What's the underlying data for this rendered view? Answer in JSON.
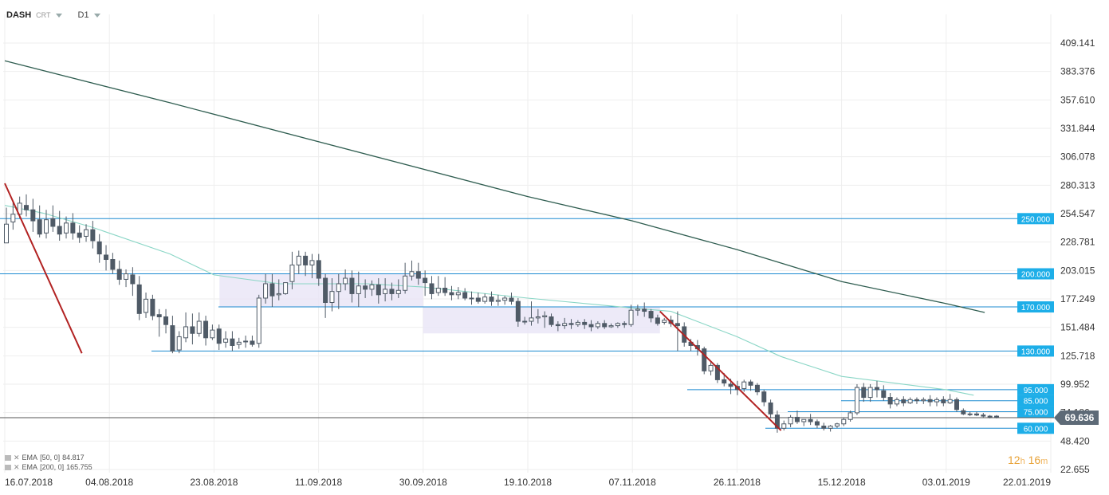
{
  "header": {
    "symbol": "DASH",
    "chart_type": "CRT",
    "timeframe": "D1"
  },
  "legend": [
    {
      "name": "EMA",
      "params": "[50, 0]",
      "value": "84.817"
    },
    {
      "name": "EMA",
      "params": "[200, 0]",
      "value": "165.755"
    }
  ],
  "timer": {
    "hours": "12",
    "h_unit": "h",
    "minutes": "16",
    "m_unit": "m"
  },
  "colors": {
    "bull": "#ffffff",
    "bear": "#4f5a66",
    "ema50": "#8ad6c6",
    "ema200": "#2f5d50",
    "hline": "#1d8bd1",
    "trend": "#b22222",
    "range_box": "#e9e5f6",
    "price_tag": "#1daee8",
    "last_price_tag": "#5d6a77"
  },
  "chart_data": {
    "type": "candlestick",
    "y_ticks": [
      "409.141",
      "383.376",
      "357.610",
      "331.844",
      "306.078",
      "280.313",
      "254.547",
      "228.781",
      "203.015",
      "177.249",
      "151.484",
      "125.718",
      "99.952",
      "74.186",
      "48.420",
      "22.655"
    ],
    "x_ticks": [
      "16.07.2018",
      "04.08.2018",
      "23.08.2018",
      "11.09.2018",
      "30.09.2018",
      "19.10.2018",
      "07.11.2018",
      "26.11.2018",
      "15.12.2018",
      "03.01.2019",
      "22.01.2019"
    ],
    "ylim": [
      22.655,
      409.141
    ],
    "last_price": "69.636",
    "level_lines": [
      {
        "label": "250.000",
        "value": 250
      },
      {
        "label": "200.000",
        "value": 200
      },
      {
        "label": "170.000",
        "value": 170
      },
      {
        "label": "130.000",
        "value": 130
      },
      {
        "label": "95.000",
        "value": 95
      },
      {
        "label": "85.000",
        "value": 85
      },
      {
        "label": "75.000",
        "value": 75
      },
      {
        "label": "60.000",
        "value": 60
      }
    ],
    "trend_lines": [
      {
        "from": [
          "16.07.2018",
          282
        ],
        "to": [
          "30.07.2018",
          128
        ]
      },
      {
        "from": [
          "12.11.2018",
          166
        ],
        "to": [
          "04.12.2018",
          58
        ]
      }
    ],
    "range_boxes": [
      {
        "from": "24.08.2018",
        "to": "30.09.2018",
        "top": 200,
        "bottom": 170
      },
      {
        "from": "30.09.2018",
        "to": "12.11.2018",
        "top": 170,
        "bottom": 146
      }
    ],
    "series": [
      {
        "name": "EMA [200, 0]",
        "points": [
          [
            "16.07.2018",
            393
          ],
          [
            "15.08.2018",
            355
          ],
          [
            "19.10.2018",
            270
          ],
          [
            "07.11.2018",
            248
          ],
          [
            "26.11.2018",
            222
          ],
          [
            "15.12.2018",
            193
          ],
          [
            "03.01.2019",
            173
          ],
          [
            "10.01.2019",
            165
          ]
        ]
      },
      {
        "name": "EMA [50, 0]",
        "points": [
          [
            "16.07.2018",
            262
          ],
          [
            "23.07.2018",
            255
          ],
          [
            "01.08.2018",
            242
          ],
          [
            "15.08.2018",
            218
          ],
          [
            "23.08.2018",
            199
          ],
          [
            "04.09.2018",
            191
          ],
          [
            "20.09.2018",
            191
          ],
          [
            "30.09.2018",
            188
          ],
          [
            "19.10.2018",
            178
          ],
          [
            "07.11.2018",
            169
          ],
          [
            "14.11.2018",
            166
          ],
          [
            "26.11.2018",
            143
          ],
          [
            "04.12.2018",
            125
          ],
          [
            "15.12.2018",
            107
          ],
          [
            "03.01.2019",
            95
          ],
          [
            "08.01.2019",
            90
          ]
        ]
      }
    ],
    "candles": [
      [
        228,
        260,
        245,
        232
      ],
      [
        247,
        266,
        254,
        240
      ],
      [
        254,
        270,
        264,
        250
      ],
      [
        262,
        272,
        258,
        252
      ],
      [
        258,
        268,
        248,
        238
      ],
      [
        249,
        262,
        236,
        233
      ],
      [
        237,
        258,
        249,
        232
      ],
      [
        250,
        262,
        243,
        238
      ],
      [
        243,
        257,
        236,
        230
      ],
      [
        237,
        252,
        246,
        232
      ],
      [
        246,
        255,
        237,
        231
      ],
      [
        237,
        244,
        233,
        228
      ],
      [
        234,
        245,
        240,
        229
      ],
      [
        240,
        248,
        230,
        223
      ],
      [
        229,
        236,
        218,
        210
      ],
      [
        217,
        226,
        213,
        203
      ],
      [
        213,
        219,
        204,
        200
      ],
      [
        204,
        212,
        195,
        190
      ],
      [
        195,
        204,
        200,
        188
      ],
      [
        199,
        206,
        191,
        180
      ],
      [
        190,
        198,
        164,
        158
      ],
      [
        165,
        183,
        177,
        160
      ],
      [
        177,
        181,
        162,
        158
      ],
      [
        163,
        168,
        161,
        143
      ],
      [
        161,
        168,
        154,
        146
      ],
      [
        153,
        162,
        130,
        128
      ],
      [
        131,
        148,
        143,
        128
      ],
      [
        142,
        165,
        152,
        138
      ],
      [
        152,
        164,
        146,
        136
      ],
      [
        146,
        165,
        157,
        143
      ],
      [
        157,
        162,
        142,
        135
      ],
      [
        142,
        154,
        149,
        140
      ],
      [
        150,
        154,
        137,
        131
      ],
      [
        138,
        148,
        141,
        133
      ],
      [
        141,
        148,
        135,
        130
      ],
      [
        136,
        142,
        138,
        132
      ],
      [
        139,
        144,
        139,
        133
      ],
      [
        139,
        144,
        136,
        134
      ],
      [
        137,
        181,
        178,
        133
      ],
      [
        178,
        200,
        191,
        173
      ],
      [
        191,
        200,
        180,
        170
      ],
      [
        181,
        195,
        182,
        176
      ],
      [
        182,
        190,
        192,
        181
      ],
      [
        193,
        220,
        208,
        186
      ],
      [
        208,
        221,
        216,
        200
      ],
      [
        216,
        220,
        208,
        198
      ],
      [
        208,
        218,
        212,
        196
      ],
      [
        212,
        218,
        196,
        189
      ],
      [
        196,
        200,
        174,
        160
      ],
      [
        174,
        196,
        184,
        166
      ],
      [
        184,
        200,
        191,
        168
      ],
      [
        191,
        204,
        196,
        185
      ],
      [
        196,
        203,
        182,
        174
      ],
      [
        182,
        202,
        189,
        170
      ],
      [
        189,
        195,
        186,
        178
      ],
      [
        186,
        194,
        190,
        180
      ],
      [
        190,
        196,
        181,
        173
      ],
      [
        182,
        196,
        186,
        175
      ],
      [
        186,
        192,
        182,
        176
      ],
      [
        182,
        195,
        185,
        178
      ],
      [
        185,
        210,
        198,
        182
      ],
      [
        198,
        212,
        202,
        194
      ],
      [
        202,
        210,
        196,
        190
      ],
      [
        196,
        203,
        192,
        180
      ],
      [
        191,
        198,
        182,
        177
      ],
      [
        183,
        198,
        187,
        180
      ],
      [
        187,
        197,
        183,
        180
      ],
      [
        183,
        189,
        181,
        176
      ],
      [
        181,
        188,
        183,
        177
      ],
      [
        183,
        187,
        178,
        176
      ],
      [
        178,
        184,
        178,
        172
      ],
      [
        178,
        183,
        175,
        173
      ],
      [
        175,
        182,
        179,
        173
      ],
      [
        179,
        184,
        175,
        171
      ],
      [
        175,
        181,
        176,
        171
      ],
      [
        176,
        180,
        178,
        172
      ],
      [
        178,
        183,
        175,
        172
      ],
      [
        175,
        178,
        157,
        152
      ],
      [
        157,
        161,
        157,
        154
      ],
      [
        157,
        175,
        160,
        153
      ],
      [
        160,
        168,
        161,
        155
      ],
      [
        161,
        166,
        162,
        151
      ],
      [
        161,
        164,
        154,
        152
      ],
      [
        154,
        157,
        153,
        148
      ],
      [
        153,
        160,
        155,
        150
      ],
      [
        155,
        159,
        154,
        150
      ],
      [
        154,
        158,
        156,
        152
      ],
      [
        156,
        159,
        154,
        150
      ],
      [
        154,
        158,
        152,
        148
      ],
      [
        152,
        157,
        155,
        150
      ],
      [
        155,
        158,
        152,
        150
      ],
      [
        152,
        155,
        153,
        151
      ],
      [
        153,
        156,
        155,
        151
      ],
      [
        155,
        157,
        154,
        151
      ],
      [
        154,
        172,
        167,
        152
      ],
      [
        167,
        172,
        168,
        162
      ],
      [
        168,
        174,
        166,
        161
      ],
      [
        166,
        168,
        160,
        156
      ],
      [
        160,
        163,
        155,
        153
      ],
      [
        156,
        160,
        158,
        154
      ],
      [
        158,
        162,
        155,
        152
      ],
      [
        155,
        166,
        153,
        130
      ],
      [
        152,
        156,
        138,
        134
      ],
      [
        138,
        141,
        135,
        130
      ],
      [
        135,
        140,
        132,
        126
      ],
      [
        132,
        134,
        112,
        109
      ],
      [
        112,
        120,
        117,
        108
      ],
      [
        117,
        119,
        104,
        101
      ],
      [
        104,
        110,
        101,
        98
      ],
      [
        100,
        105,
        98,
        91
      ],
      [
        98,
        103,
        95,
        90
      ],
      [
        96,
        104,
        102,
        93
      ],
      [
        102,
        104,
        99,
        94
      ],
      [
        99,
        101,
        93,
        90
      ],
      [
        93,
        95,
        84,
        80
      ],
      [
        83,
        86,
        73,
        69
      ],
      [
        72,
        76,
        60,
        56
      ],
      [
        60,
        67,
        64,
        58
      ],
      [
        64,
        72,
        70,
        61
      ],
      [
        70,
        76,
        66,
        64
      ],
      [
        66,
        68,
        68,
        62
      ],
      [
        68,
        73,
        66,
        63
      ],
      [
        66,
        68,
        63,
        60
      ],
      [
        62,
        65,
        60,
        58
      ],
      [
        60,
        63,
        62,
        57
      ],
      [
        62,
        65,
        64,
        60
      ],
      [
        64,
        70,
        68,
        62
      ],
      [
        68,
        76,
        74,
        66
      ],
      [
        74,
        100,
        97,
        72
      ],
      [
        97,
        101,
        88,
        84
      ],
      [
        88,
        100,
        97,
        84
      ],
      [
        97,
        103,
        95,
        88
      ],
      [
        94,
        99,
        88,
        85
      ],
      [
        88,
        92,
        82,
        78
      ],
      [
        82,
        88,
        86,
        80
      ],
      [
        86,
        89,
        83,
        80
      ],
      [
        83,
        88,
        86,
        82
      ],
      [
        86,
        88,
        85,
        82
      ],
      [
        85,
        88,
        86,
        82
      ],
      [
        86,
        90,
        84,
        80
      ],
      [
        84,
        88,
        86,
        80
      ],
      [
        86,
        89,
        83,
        80
      ],
      [
        83,
        91,
        86,
        82
      ],
      [
        86,
        88,
        77,
        75
      ],
      [
        76,
        78,
        73,
        72
      ],
      [
        73,
        75,
        73,
        71
      ],
      [
        73,
        75,
        72,
        71
      ],
      [
        72,
        74,
        71,
        70
      ],
      [
        71,
        72,
        71,
        69
      ],
      [
        71,
        72,
        70,
        69
      ]
    ]
  }
}
